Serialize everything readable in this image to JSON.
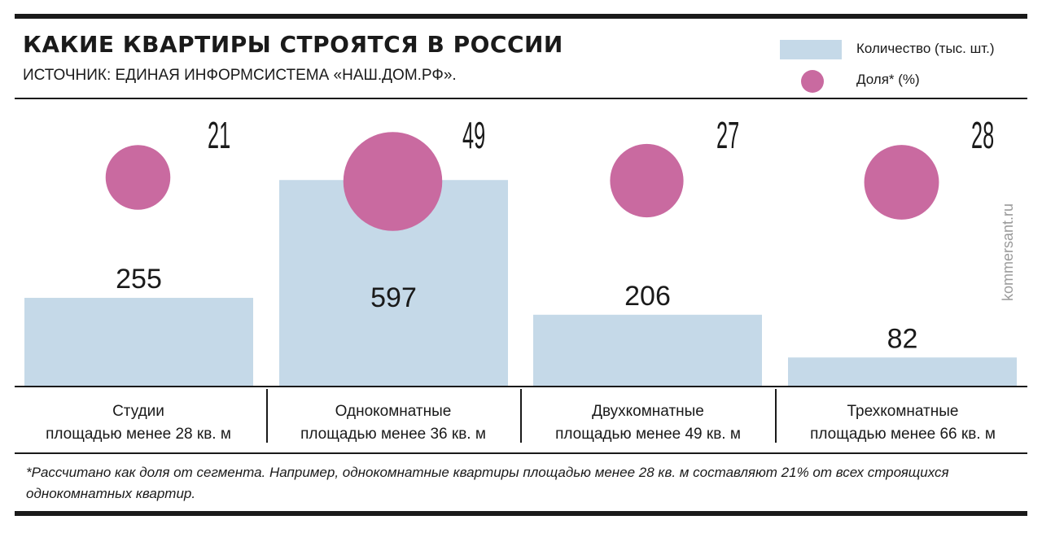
{
  "header": {
    "title": "КАКИЕ КВАРТИРЫ СТРОЯТСЯ В РОССИИ",
    "subtitle": "ИСТОЧНИК: ЕДИНАЯ ИНФОРМСИСТЕМА «НАШ.ДОМ.РФ»."
  },
  "legend": {
    "count_label": "Количество (тыс. шт.)",
    "share_label": "Доля* (%)"
  },
  "colors": {
    "bar": "#c5d9e8",
    "bubble": "#c96aa0",
    "ink": "#1a1a1a"
  },
  "categories": [
    {
      "line1": "Студии",
      "line2": "площадью менее 28 кв. м"
    },
    {
      "line1": "Однокомнатные",
      "line2": "площадью менее 36 кв. м"
    },
    {
      "line1": "Двухкомнатные",
      "line2": "площадью менее 49 кв. м"
    },
    {
      "line1": "Трехкомнатные",
      "line2": "площадью менее 66 кв. м"
    }
  ],
  "chart_data": {
    "type": "bar",
    "categories": [
      "Студии площадью менее 28 кв. м",
      "Однокомнатные площадью менее 36 кв. м",
      "Двухкомнатные площадью менее 49 кв. м",
      "Трехкомнатные площадью менее 66 кв. м"
    ],
    "series": [
      {
        "name": "Количество (тыс. шт.)",
        "values": [
          255,
          597,
          206,
          82
        ],
        "mark": "bar"
      },
      {
        "name": "Доля* (%)",
        "values": [
          21,
          49,
          27,
          28
        ],
        "mark": "bubble"
      }
    ],
    "title": "КАКИЕ КВАРТИРЫ СТРОЯТСЯ В РОССИИ",
    "xlabel": "",
    "ylabel": "",
    "grid": false,
    "legend_position": "top-right"
  },
  "watermark": "kommersant.ru",
  "footnote": "*Рассчитано как доля от сегмента. Например, однокомнатные квартиры площадью менее 28 кв. м составляют 21% от всех строящихся однокомнатных квартир."
}
